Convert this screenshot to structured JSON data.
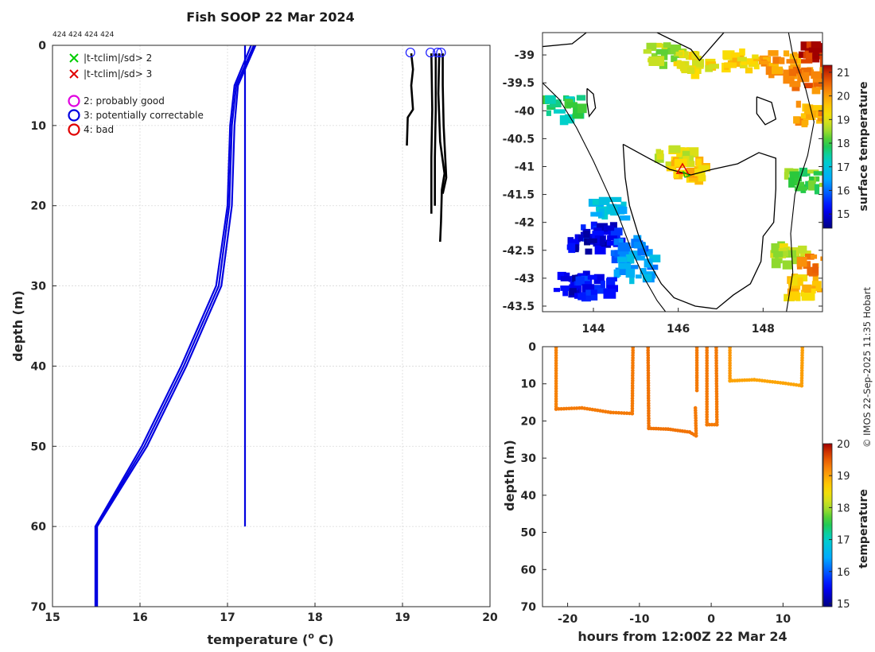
{
  "chart_data": [
    {
      "type": "line",
      "title": "Fish SOOP 22 Mar 2024",
      "ids_label": "424 424 424 424",
      "xlabel": "temperature (",
      "xlabel_sup": "o",
      "xlabel_end": " C)",
      "ylabel": "depth (m)",
      "xlim": [
        15,
        20
      ],
      "ylim": [
        0,
        70
      ],
      "xticks": [
        "15",
        "16",
        "17",
        "18",
        "19",
        "20"
      ],
      "yticks": [
        "0",
        "10",
        "20",
        "30",
        "40",
        "50",
        "60",
        "70"
      ],
      "legend": [
        {
          "marker": "x",
          "color": "#00cc00",
          "label": "|t-tclim|/sd> 2"
        },
        {
          "marker": "x",
          "color": "#e00000",
          "label": "|t-tclim|/sd> 3"
        },
        {
          "marker": "o",
          "color": "#e000e0",
          "label": "2: probably good"
        },
        {
          "marker": "o",
          "color": "#0000e0",
          "label": "3: potentially correctable"
        },
        {
          "marker": "o",
          "color": "#e00000",
          "label": "4: bad"
        }
      ],
      "profiles": [
        {
          "name": "profile 1",
          "color": "#0000e0",
          "points": [
            [
              17.3,
              0
            ],
            [
              17.1,
              5
            ],
            [
              17.05,
              10
            ],
            [
              17.02,
              20
            ],
            [
              16.9,
              30
            ],
            [
              16.5,
              40
            ],
            [
              16.05,
              50
            ],
            [
              15.5,
              60
            ],
            [
              15.5,
              70
            ]
          ]
        },
        {
          "name": "profile 2",
          "color": "#0000e0",
          "points": [
            [
              17.27,
              0
            ],
            [
              17.08,
              5
            ],
            [
              17.03,
              10
            ],
            [
              17.0,
              20
            ],
            [
              16.87,
              30
            ],
            [
              16.47,
              40
            ],
            [
              16.02,
              50
            ],
            [
              15.49,
              60
            ],
            [
              15.49,
              70
            ]
          ]
        },
        {
          "name": "profile 3",
          "color": "#0000e0",
          "points": [
            [
              17.32,
              0
            ],
            [
              17.12,
              5
            ],
            [
              17.08,
              10
            ],
            [
              17.05,
              20
            ],
            [
              16.93,
              30
            ],
            [
              16.53,
              40
            ],
            [
              16.08,
              50
            ],
            [
              15.51,
              60
            ],
            [
              15.51,
              70
            ]
          ]
        },
        {
          "name": "profile 4",
          "color": "#0000e0",
          "points": [
            [
              17.2,
              0
            ],
            [
              17.2,
              5
            ],
            [
              17.2,
              10
            ],
            [
              17.2,
              20
            ],
            [
              17.2,
              30
            ],
            [
              17.2,
              40
            ],
            [
              17.2,
              50
            ],
            [
              17.2,
              60
            ]
          ]
        }
      ],
      "fish_tracks": [
        {
          "color": "#000000",
          "points": [
            [
              19.1,
              1
            ],
            [
              19.12,
              3
            ],
            [
              19.1,
              5
            ],
            [
              19.12,
              8
            ],
            [
              19.06,
              9
            ],
            [
              19.05,
              12.5
            ]
          ]
        },
        {
          "color": "#000000",
          "points": [
            [
              19.33,
              1
            ],
            [
              19.34,
              8
            ],
            [
              19.33,
              14
            ],
            [
              19.33,
              21
            ]
          ]
        },
        {
          "color": "#000000",
          "points": [
            [
              19.38,
              1
            ],
            [
              19.38,
              8
            ],
            [
              19.37,
              14
            ],
            [
              19.37,
              20
            ]
          ]
        },
        {
          "color": "#000000",
          "points": [
            [
              19.42,
              1
            ],
            [
              19.41,
              6
            ],
            [
              19.43,
              12
            ],
            [
              19.48,
              16
            ],
            [
              19.45,
              18
            ],
            [
              19.44,
              22
            ],
            [
              19.43,
              24.5
            ]
          ]
        },
        {
          "color": "#000000",
          "points": [
            [
              19.46,
              1
            ],
            [
              19.46,
              5
            ],
            [
              19.47,
              10
            ],
            [
              19.5,
              16.5
            ],
            [
              19.46,
              18.5
            ]
          ]
        }
      ],
      "qc_circles": [
        {
          "temp": 19.09,
          "depth": 0.9
        },
        {
          "temp": 19.32,
          "depth": 0.9
        },
        {
          "temp": 19.4,
          "depth": 0.9
        },
        {
          "temp": 19.44,
          "depth": 0.9
        }
      ]
    },
    {
      "type": "heatmap",
      "xlim": [
        142.8,
        149.4
      ],
      "ylim": [
        -43.6,
        -38.6
      ],
      "xticks": [
        "144",
        "146",
        "148"
      ],
      "xtick_values": [
        144,
        146,
        148
      ],
      "yticks": [
        "-39",
        "-39.5",
        "-40",
        "-40.5",
        "-41",
        "-41.5",
        "-42",
        "-42.5",
        "-43",
        "-43.5"
      ],
      "ytick_values": [
        -39,
        -39.5,
        -40,
        -40.5,
        -41,
        -41.5,
        -42,
        -42.5,
        -43,
        -43.5
      ],
      "colorbar_label": "surface temperature",
      "colorbar_range": [
        14.4,
        21.3
      ],
      "colorbar_ticks": [
        "21",
        "20",
        "19",
        "18",
        "17",
        "16",
        "15"
      ],
      "colorbar_tick_values": [
        21,
        20,
        19,
        18,
        17,
        16,
        15
      ],
      "fish_position": {
        "lon": 146.1,
        "lat": -41.05
      },
      "sst_patches": [
        {
          "lon": 145.6,
          "lat": -38.95,
          "value": 18.6
        },
        {
          "lon": 146.3,
          "lat": -39.1,
          "value": 19.2
        },
        {
          "lon": 147.4,
          "lat": -39.05,
          "value": 19.4
        },
        {
          "lon": 148.3,
          "lat": -39.1,
          "value": 20.1
        },
        {
          "lon": 148.9,
          "lat": -39.4,
          "value": 20.4
        },
        {
          "lon": 149.2,
          "lat": -38.9,
          "value": 21.2
        },
        {
          "lon": 149.1,
          "lat": -40.0,
          "value": 19.9
        },
        {
          "lon": 143.2,
          "lat": -39.9,
          "value": 17.7
        },
        {
          "lon": 145.8,
          "lat": -40.8,
          "value": 19.0
        },
        {
          "lon": 146.15,
          "lat": -41.0,
          "value": 19.6
        },
        {
          "lon": 148.9,
          "lat": -41.2,
          "value": 18.2
        },
        {
          "lon": 148.5,
          "lat": -42.5,
          "value": 18.8
        },
        {
          "lon": 148.9,
          "lat": -43.1,
          "value": 19.6
        },
        {
          "lon": 149.2,
          "lat": -42.7,
          "value": 20.2
        },
        {
          "lon": 144.1,
          "lat": -42.15,
          "value": 15.2
        },
        {
          "lon": 143.8,
          "lat": -42.3,
          "value": 14.9
        },
        {
          "lon": 144.8,
          "lat": -42.4,
          "value": 16.2
        },
        {
          "lon": 144.9,
          "lat": -42.75,
          "value": 16.5
        },
        {
          "lon": 143.4,
          "lat": -43.0,
          "value": 15.0
        },
        {
          "lon": 143.9,
          "lat": -43.1,
          "value": 15.4
        },
        {
          "lon": 144.3,
          "lat": -41.7,
          "value": 16.8
        }
      ],
      "coastlines": [
        {
          "name": "tasmania",
          "points": [
            [
              144.7,
              -40.6
            ],
            [
              145.3,
              -40.85
            ],
            [
              145.8,
              -41.05
            ],
            [
              146.3,
              -41.15
            ],
            [
              146.8,
              -41.05
            ],
            [
              147.4,
              -40.95
            ],
            [
              147.9,
              -40.75
            ],
            [
              148.3,
              -40.85
            ],
            [
              148.3,
              -41.4
            ],
            [
              148.25,
              -42.0
            ],
            [
              148.0,
              -42.25
            ],
            [
              147.95,
              -42.7
            ],
            [
              147.7,
              -43.1
            ],
            [
              147.3,
              -43.3
            ],
            [
              146.9,
              -43.55
            ],
            [
              146.4,
              -43.5
            ],
            [
              145.9,
              -43.35
            ],
            [
              145.6,
              -43.1
            ],
            [
              145.3,
              -42.7
            ],
            [
              145.05,
              -42.2
            ],
            [
              144.85,
              -41.7
            ],
            [
              144.75,
              -41.2
            ],
            [
              144.7,
              -40.6
            ]
          ]
        },
        {
          "name": "victoria",
          "points": [
            [
              142.8,
              -38.85
            ],
            [
              143.5,
              -38.8
            ],
            [
              144.0,
              -38.5
            ],
            [
              144.9,
              -38.45
            ],
            [
              145.5,
              -38.6
            ],
            [
              146.3,
              -38.9
            ],
            [
              146.5,
              -39.1
            ],
            [
              146.9,
              -38.75
            ],
            [
              147.6,
              -38.15
            ]
          ]
        },
        {
          "name": "king-island",
          "points": [
            [
              143.85,
              -39.6
            ],
            [
              144.0,
              -39.7
            ],
            [
              144.05,
              -39.95
            ],
            [
              143.9,
              -40.1
            ],
            [
              143.85,
              -39.85
            ],
            [
              143.85,
              -39.6
            ]
          ]
        },
        {
          "name": "flinders-island",
          "points": [
            [
              147.85,
              -39.75
            ],
            [
              148.2,
              -39.85
            ],
            [
              148.3,
              -40.15
            ],
            [
              148.05,
              -40.25
            ],
            [
              147.85,
              -40.05
            ],
            [
              147.85,
              -39.75
            ]
          ]
        },
        {
          "name": "shelf-west",
          "points": [
            [
              142.8,
              -39.5
            ],
            [
              143.2,
              -39.8
            ],
            [
              143.6,
              -40.3
            ],
            [
              144.0,
              -40.9
            ],
            [
              144.3,
              -41.4
            ],
            [
              144.6,
              -41.9
            ],
            [
              144.9,
              -42.5
            ],
            [
              145.2,
              -43.0
            ],
            [
              145.5,
              -43.4
            ],
            [
              145.7,
              -43.6
            ]
          ]
        },
        {
          "name": "shelf-east",
          "points": [
            [
              148.6,
              -38.6
            ],
            [
              148.7,
              -39.0
            ],
            [
              149.0,
              -39.6
            ],
            [
              149.2,
              -40.2
            ],
            [
              149.05,
              -40.8
            ],
            [
              148.75,
              -41.5
            ],
            [
              148.65,
              -42.2
            ],
            [
              148.7,
              -42.9
            ],
            [
              148.55,
              -43.6
            ]
          ]
        }
      ]
    },
    {
      "type": "scatter",
      "xlabel": "hours from 12:00Z 22 Mar 24",
      "ylabel": "depth (m)",
      "xlim": [
        -23.5,
        15.5
      ],
      "ylim": [
        0,
        70
      ],
      "xticks": [
        "-20",
        "-10",
        "0",
        "10"
      ],
      "xtick_values": [
        -20,
        -10,
        0,
        10
      ],
      "yticks": [
        "0",
        "10",
        "20",
        "30",
        "40",
        "50",
        "60",
        "70"
      ],
      "colorbar_label": "temperature",
      "colorbar_range": [
        14.9,
        20.0
      ],
      "colorbar_ticks": [
        "20",
        "19",
        "18",
        "17",
        "16",
        "15"
      ],
      "colorbar_tick_values": [
        20,
        19,
        18,
        17,
        16,
        15
      ],
      "segments": [
        {
          "points": [
            [
              -21.6,
              0.3
            ],
            [
              -21.6,
              16.8
            ]
          ],
          "temp": 19.25
        },
        {
          "points": [
            [
              -21.6,
              16.8
            ],
            [
              -18.0,
              16.5
            ],
            [
              -14.0,
              17.7
            ],
            [
              -11.0,
              18.0
            ]
          ],
          "temp": 19.3
        },
        {
          "points": [
            [
              -11.0,
              18.0
            ],
            [
              -10.9,
              0.3
            ]
          ],
          "temp": 19.3
        },
        {
          "points": [
            [
              -8.8,
              0.3
            ],
            [
              -8.7,
              22.0
            ]
          ],
          "temp": 19.35
        },
        {
          "points": [
            [
              -8.7,
              22.0
            ],
            [
              -6.0,
              22.2
            ],
            [
              -3.0,
              23.0
            ],
            [
              -2.1,
              24.0
            ]
          ],
          "temp": 19.35
        },
        {
          "points": [
            [
              -2.1,
              24.0
            ],
            [
              -2.2,
              16.5
            ]
          ],
          "temp": 19.3
        },
        {
          "points": [
            [
              -2.0,
              0.3
            ],
            [
              -2.0,
              11.8
            ]
          ],
          "temp": 19.3
        },
        {
          "points": [
            [
              -0.6,
              0.3
            ],
            [
              -0.6,
              21.0
            ]
          ],
          "temp": 19.3
        },
        {
          "points": [
            [
              -0.6,
              21.0
            ],
            [
              0.8,
              21.0
            ]
          ],
          "temp": 19.3
        },
        {
          "points": [
            [
              0.8,
              21.0
            ],
            [
              0.7,
              0.3
            ]
          ],
          "temp": 19.3
        },
        {
          "points": [
            [
              2.6,
              0.3
            ],
            [
              2.6,
              9.2
            ]
          ],
          "temp": 19.1
        },
        {
          "points": [
            [
              2.6,
              9.2
            ],
            [
              6.0,
              8.9
            ],
            [
              10.0,
              9.8
            ],
            [
              12.6,
              10.5
            ]
          ],
          "temp": 19.0
        },
        {
          "points": [
            [
              12.6,
              10.5
            ],
            [
              12.7,
              0.3
            ]
          ],
          "temp": 19.05
        }
      ]
    }
  ],
  "copyright": "© IMOS 22-Sep-2025 11:35 Hobart"
}
